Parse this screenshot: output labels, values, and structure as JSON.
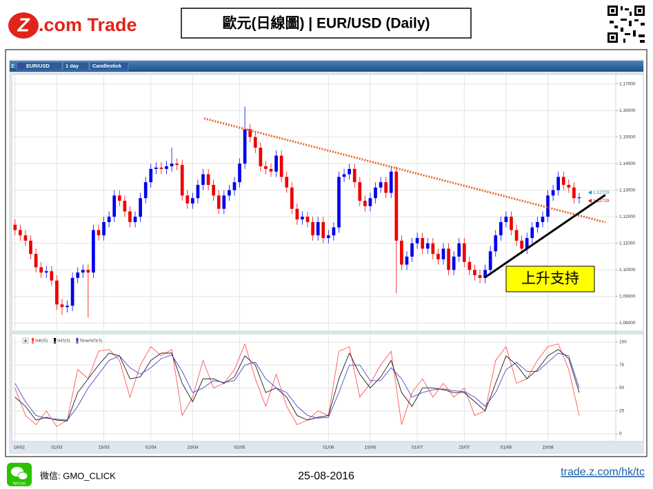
{
  "header": {
    "logo_mark": "Z",
    "logo_text": ".com Trade",
    "title": "歐元(日線圖) | EUR/USD (Daily)"
  },
  "toolbar": {
    "index": "2:",
    "symbol": "EUR/USD",
    "interval": "1 day",
    "chart_style": "Candlestick"
  },
  "chart_data": [
    {
      "type": "candlestick",
      "open": [
        1.117,
        1.115,
        1.113,
        1.111,
        1.106,
        1.101,
        1.099,
        1.0995,
        1.096,
        1.087,
        1.086,
        1.0865,
        1.097,
        1.099,
        1.1,
        1.099,
        1.115,
        1.113,
        1.118,
        1.12,
        1.128,
        1.126,
        1.122,
        1.118,
        1.12,
        1.127,
        1.133,
        1.138,
        1.1385,
        1.138,
        1.139,
        1.14,
        1.1395,
        1.128,
        1.125,
        1.127,
        1.132,
        1.136,
        1.132,
        1.128,
        1.123,
        1.128,
        1.13,
        1.133,
        1.14,
        1.153,
        1.15,
        1.146,
        1.139,
        1.138,
        1.137,
        1.143,
        1.135,
        1.131,
        1.123,
        1.119,
        1.12,
        1.118,
        1.113,
        1.118,
        1.112,
        1.113,
        1.116,
        1.135,
        1.136,
        1.138,
        1.133,
        1.126,
        1.124,
        1.127,
        1.131,
        1.133,
        1.129,
        1.137,
        1.111,
        1.102,
        1.105,
        1.11,
        1.112,
        1.108,
        1.11,
        1.106,
        1.104,
        1.108,
        1.1,
        1.105,
        1.11,
        1.103,
        1.1,
        1.098,
        1.097,
        1.1,
        1.107,
        1.113,
        1.118,
        1.12,
        1.115,
        1.111,
        1.108,
        1.112,
        1.116,
        1.118,
        1.12,
        1.128,
        1.13,
        1.135,
        1.132,
        1.131,
        1.127
      ],
      "high": [
        1.119,
        1.117,
        1.115,
        1.113,
        1.108,
        1.103,
        1.1015,
        1.1015,
        1.098,
        1.089,
        1.0885,
        1.099,
        1.101,
        1.102,
        1.102,
        1.117,
        1.117,
        1.12,
        1.122,
        1.13,
        1.13,
        1.128,
        1.124,
        1.122,
        1.129,
        1.135,
        1.14,
        1.1405,
        1.1405,
        1.141,
        1.146,
        1.142,
        1.1415,
        1.13,
        1.129,
        1.134,
        1.138,
        1.138,
        1.134,
        1.13,
        1.13,
        1.132,
        1.135,
        1.142,
        1.1615,
        1.155,
        1.152,
        1.148,
        1.141,
        1.14,
        1.145,
        1.145,
        1.137,
        1.133,
        1.125,
        1.122,
        1.122,
        1.12,
        1.12,
        1.12,
        1.115,
        1.118,
        1.137,
        1.138,
        1.14,
        1.14,
        1.135,
        1.128,
        1.129,
        1.133,
        1.135,
        1.135,
        1.139,
        1.139,
        1.113,
        1.107,
        1.112,
        1.114,
        1.114,
        1.112,
        1.112,
        1.108,
        1.11,
        1.11,
        1.107,
        1.112,
        1.112,
        1.105,
        1.102,
        1.1,
        1.102,
        1.109,
        1.115,
        1.12,
        1.122,
        1.122,
        1.117,
        1.113,
        1.114,
        1.118,
        1.12,
        1.122,
        1.13,
        1.132,
        1.137,
        1.137,
        1.134,
        1.133,
        1.129
      ],
      "low": [
        1.113,
        1.111,
        1.109,
        1.104,
        1.099,
        1.097,
        1.097,
        1.094,
        1.085,
        1.083,
        1.084,
        1.0845,
        1.095,
        1.097,
        1.082,
        1.097,
        1.111,
        1.111,
        1.116,
        1.118,
        1.124,
        1.12,
        1.116,
        1.116,
        1.118,
        1.125,
        1.131,
        1.136,
        1.136,
        1.136,
        1.137,
        1.1375,
        1.126,
        1.123,
        1.123,
        1.125,
        1.13,
        1.13,
        1.126,
        1.121,
        1.121,
        1.126,
        1.128,
        1.131,
        1.138,
        1.148,
        1.144,
        1.137,
        1.136,
        1.135,
        1.135,
        1.133,
        1.129,
        1.121,
        1.117,
        1.117,
        1.116,
        1.111,
        1.111,
        1.11,
        1.11,
        1.111,
        1.114,
        1.133,
        1.134,
        1.131,
        1.124,
        1.122,
        1.122,
        1.125,
        1.129,
        1.127,
        1.127,
        1.0912,
        1.1,
        1.1,
        1.103,
        1.108,
        1.106,
        1.106,
        1.104,
        1.102,
        1.102,
        1.098,
        1.098,
        1.103,
        1.101,
        1.098,
        1.096,
        1.095,
        1.095,
        1.098,
        1.105,
        1.111,
        1.116,
        1.113,
        1.109,
        1.106,
        1.106,
        1.11,
        1.114,
        1.116,
        1.118,
        1.126,
        1.128,
        1.13,
        1.129,
        1.125,
        1.125
      ],
      "close": [
        1.115,
        1.113,
        1.111,
        1.106,
        1.101,
        1.099,
        1.0995,
        1.096,
        1.087,
        1.086,
        1.0865,
        1.097,
        1.099,
        1.1,
        1.099,
        1.115,
        1.113,
        1.118,
        1.12,
        1.128,
        1.126,
        1.122,
        1.118,
        1.12,
        1.127,
        1.133,
        1.138,
        1.1385,
        1.138,
        1.139,
        1.14,
        1.1395,
        1.128,
        1.125,
        1.127,
        1.132,
        1.136,
        1.132,
        1.128,
        1.123,
        1.128,
        1.13,
        1.133,
        1.14,
        1.153,
        1.15,
        1.146,
        1.139,
        1.138,
        1.137,
        1.143,
        1.135,
        1.131,
        1.123,
        1.119,
        1.12,
        1.118,
        1.113,
        1.118,
        1.112,
        1.113,
        1.116,
        1.135,
        1.136,
        1.138,
        1.133,
        1.126,
        1.124,
        1.127,
        1.131,
        1.133,
        1.129,
        1.137,
        1.111,
        1.102,
        1.105,
        1.11,
        1.112,
        1.108,
        1.11,
        1.106,
        1.104,
        1.108,
        1.1,
        1.105,
        1.11,
        1.103,
        1.1,
        1.098,
        1.097,
        1.1,
        1.107,
        1.113,
        1.118,
        1.12,
        1.115,
        1.111,
        1.108,
        1.112,
        1.116,
        1.118,
        1.12,
        1.128,
        1.13,
        1.135,
        1.132,
        1.131,
        1.127,
        1.1273
      ],
      "up_color": "#0000ee",
      "down_color": "#ee0000",
      "xlim": [
        -0.5,
        115
      ],
      "ylim": [
        1.0775,
        1.1725
      ],
      "yticks": [
        {
          "value": 1.08,
          "label": "1.08000"
        },
        {
          "value": 1.09,
          "label": "1.09000"
        },
        {
          "value": 1.1,
          "label": "1.10000"
        },
        {
          "value": 1.11,
          "label": "1.11000"
        },
        {
          "value": 1.12,
          "label": "1.12000"
        },
        {
          "value": 1.13,
          "label": "1.13000"
        },
        {
          "value": 1.14,
          "label": "1.14000"
        },
        {
          "value": 1.15,
          "label": "1.15000"
        },
        {
          "value": 1.16,
          "label": "1.16000"
        },
        {
          "value": 1.17,
          "label": "1.17000"
        }
      ],
      "grid": true,
      "price_tags": [
        {
          "value": 1.12729,
          "color": "#1a8fd6"
        },
        {
          "value": 1.12729,
          "color": "#ee0000"
        }
      ],
      "trend_lines": [
        {
          "from": [
            36.2,
            1.157
          ],
          "to": [
            113,
            1.1179
          ],
          "color": "#e8612c",
          "dashed": true
        },
        {
          "from": [
            89.9,
            1.0971
          ],
          "to": [
            113,
            1.1282
          ],
          "color": "#000000",
          "dashed": false
        }
      ],
      "annotation": "上升支持"
    },
    {
      "type": "line",
      "x": [
        0,
        2,
        4,
        6,
        8,
        10,
        12,
        14,
        16,
        18,
        20,
        22,
        24,
        26,
        28,
        30,
        32,
        34,
        36,
        38,
        40,
        42,
        44,
        46,
        48,
        50,
        52,
        54,
        56,
        58,
        60,
        62,
        64,
        66,
        68,
        70,
        72,
        74,
        76,
        78,
        80,
        82,
        84,
        86,
        88,
        90,
        92,
        94,
        96,
        98,
        100,
        102,
        104,
        106,
        108
      ],
      "series": [
        {
          "name": "%K(5)",
          "color": "#ff4040",
          "values": [
            50,
            20,
            10,
            25,
            8,
            15,
            70,
            60,
            90,
            92,
            80,
            40,
            75,
            95,
            85,
            92,
            20,
            40,
            80,
            50,
            55,
            70,
            98,
            60,
            30,
            65,
            30,
            10,
            15,
            25,
            20,
            90,
            95,
            40,
            55,
            75,
            90,
            10,
            45,
            60,
            40,
            55,
            40,
            50,
            20,
            25,
            80,
            95,
            55,
            60,
            80,
            95,
            98,
            70,
            20
          ]
        },
        {
          "name": "%D(3)",
          "color": "#000000",
          "values": [
            40,
            30,
            15,
            18,
            15,
            14,
            45,
            60,
            75,
            88,
            85,
            60,
            62,
            80,
            88,
            88,
            55,
            35,
            60,
            60,
            55,
            62,
            85,
            75,
            45,
            50,
            40,
            20,
            15,
            18,
            20,
            60,
            88,
            65,
            50,
            62,
            80,
            45,
            30,
            50,
            50,
            48,
            45,
            45,
            35,
            25,
            55,
            85,
            75,
            60,
            70,
            85,
            92,
            82,
            45
          ]
        },
        {
          "name": "Slow%D(3)",
          "color": "#3030c0",
          "values": [
            55,
            35,
            20,
            17,
            16,
            15,
            30,
            50,
            65,
            80,
            85,
            72,
            65,
            72,
            82,
            86,
            68,
            45,
            50,
            58,
            56,
            58,
            75,
            78,
            60,
            50,
            45,
            30,
            20,
            17,
            18,
            45,
            75,
            75,
            58,
            58,
            72,
            60,
            40,
            45,
            48,
            49,
            47,
            46,
            40,
            30,
            45,
            70,
            78,
            68,
            68,
            78,
            88,
            85,
            50
          ]
        }
      ],
      "xlim": [
        -0.5,
        115
      ],
      "ylim": [
        -6,
        107.5
      ],
      "yticks": [
        0,
        25,
        50,
        75,
        100
      ],
      "xticks": [
        {
          "value": 0,
          "label": "16/02"
        },
        {
          "value": 8,
          "label": "01/03"
        },
        {
          "value": 17,
          "label": "15/03"
        },
        {
          "value": 26,
          "label": "01/04"
        },
        {
          "value": 34,
          "label": "15/04"
        },
        {
          "value": 43,
          "label": "02/05"
        },
        {
          "value": 60,
          "label": "01/06"
        },
        {
          "value": 68,
          "label": "15/06"
        },
        {
          "value": 77,
          "label": "01/07"
        },
        {
          "value": 86,
          "label": "15/07"
        },
        {
          "value": 94,
          "label": "01/08"
        },
        {
          "value": 102,
          "label": "15/08"
        }
      ],
      "grid": true
    }
  ],
  "footer": {
    "wechat_icon": "WeChat",
    "wechat": "微信: GMO_CLICK",
    "date": "25-08-2016",
    "url": "trade.z.com/hk/tc"
  }
}
